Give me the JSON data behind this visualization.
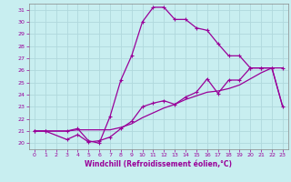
{
  "xlabel": "Windchill (Refroidissement éolien,°C)",
  "bg_color": "#c8eef0",
  "grid_color": "#b0d8dc",
  "line_color": "#990099",
  "spine_color": "#888888",
  "x_ticks": [
    0,
    1,
    2,
    3,
    4,
    5,
    6,
    7,
    8,
    9,
    10,
    11,
    12,
    13,
    14,
    15,
    16,
    17,
    18,
    19,
    20,
    21,
    22,
    23
  ],
  "y_ticks": [
    20,
    21,
    22,
    23,
    24,
    25,
    26,
    27,
    28,
    29,
    30,
    31
  ],
  "xlim": [
    -0.5,
    23.5
  ],
  "ylim": [
    19.5,
    31.5
  ],
  "s1_x": [
    0,
    1,
    3,
    4,
    5,
    6,
    7,
    8,
    9,
    10,
    11,
    12,
    13,
    14,
    15,
    16,
    17,
    18,
    19,
    20,
    21,
    22,
    23
  ],
  "s1_y": [
    21,
    21,
    21,
    21.2,
    20.2,
    20.0,
    22.2,
    25.2,
    27.2,
    30.0,
    31.2,
    31.2,
    30.2,
    30.2,
    29.5,
    29.3,
    28.2,
    27.2,
    27.2,
    26.2,
    26.2,
    26.2,
    26.2
  ],
  "s2_x": [
    0,
    1,
    3,
    4,
    5,
    6,
    7,
    8,
    9,
    10,
    11,
    12,
    13,
    14,
    15,
    16,
    17,
    18,
    19,
    20,
    21,
    22,
    23
  ],
  "s2_y": [
    21,
    21,
    20.3,
    20.7,
    20.1,
    20.2,
    20.5,
    21.2,
    21.8,
    23.0,
    23.3,
    23.5,
    23.2,
    23.8,
    24.2,
    25.3,
    24.1,
    25.2,
    25.2,
    26.2,
    26.2,
    26.2,
    23.0
  ],
  "s3_x": [
    0,
    1,
    3,
    4,
    5,
    6,
    7,
    8,
    9,
    10,
    11,
    12,
    13,
    14,
    15,
    16,
    17,
    18,
    19,
    20,
    21,
    22,
    23
  ],
  "s3_y": [
    21,
    21,
    21.0,
    21.1,
    21.1,
    21.1,
    21.1,
    21.3,
    21.6,
    22.1,
    22.5,
    22.9,
    23.2,
    23.6,
    23.9,
    24.2,
    24.3,
    24.5,
    24.8,
    25.3,
    25.8,
    26.2,
    23.0
  ]
}
